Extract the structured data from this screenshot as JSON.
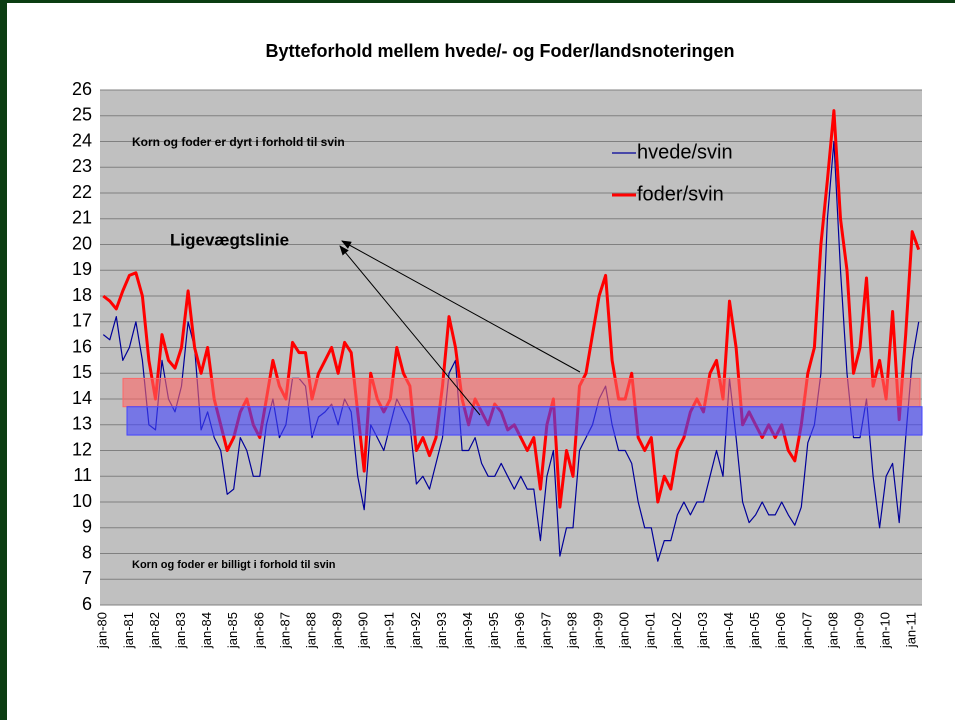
{
  "chart_data": {
    "type": "line",
    "title": "Bytteforhold mellem hvede/- og Foder/landsnoteringen",
    "categories": [
      "jan-80",
      null,
      null,
      null,
      "jan-81",
      null,
      null,
      null,
      "jan-82",
      null,
      null,
      null,
      "jan-83",
      null,
      null,
      null,
      "jan-84",
      null,
      null,
      null,
      "jan-85",
      null,
      null,
      null,
      "jan-86",
      null,
      null,
      null,
      "jan-87",
      null,
      null,
      null,
      "jan-88",
      null,
      null,
      null,
      "jan-89",
      null,
      null,
      null,
      "jan-90",
      null,
      null,
      null,
      "jan-91",
      null,
      null,
      null,
      "jan-92",
      null,
      null,
      null,
      "jan-93",
      null,
      null,
      null,
      "jan-94",
      null,
      null,
      null,
      "jan-95",
      null,
      null,
      null,
      "jan-96",
      null,
      null,
      null,
      "jan-97",
      null,
      null,
      null,
      "jan-98",
      null,
      null,
      null,
      "jan-99",
      null,
      null,
      null,
      "jan-00",
      null,
      null,
      null,
      "jan-01",
      null,
      null,
      null,
      "jan-02",
      null,
      null,
      null,
      "jan-03",
      null,
      null,
      null,
      "jan-04",
      null,
      null,
      null,
      "jan-05",
      null,
      null,
      null,
      "jan-06",
      null,
      null,
      null,
      "jan-07",
      null,
      null,
      null,
      "jan-08",
      null,
      null,
      null,
      "jan-09",
      null,
      null,
      null,
      "jan-10",
      null,
      null,
      null,
      "jan-11",
      null
    ],
    "series": [
      {
        "name": "hvede/svin",
        "color": "#000099",
        "values": [
          16.5,
          16.3,
          17.2,
          15.5,
          16,
          17,
          15.5,
          13,
          12.8,
          15.5,
          14,
          13.5,
          14.5,
          17,
          16,
          12.8,
          13.5,
          12.5,
          12,
          10.3,
          10.5,
          12.5,
          12,
          11,
          11,
          13,
          14,
          12.5,
          13,
          14.8,
          14.8,
          14.5,
          12.5,
          13.3,
          13.5,
          13.8,
          13,
          14,
          13.5,
          11,
          9.7,
          13,
          12.5,
          12,
          13,
          14,
          13.5,
          13,
          10.7,
          11,
          10.5,
          11.5,
          12.5,
          15,
          15.5,
          12,
          12,
          12.5,
          11.5,
          11,
          11,
          11.5,
          11,
          10.5,
          11,
          10.5,
          10.5,
          8.5,
          11,
          12,
          7.9,
          9,
          9,
          12,
          12.5,
          13,
          14,
          14.5,
          13,
          12,
          12,
          11.5,
          10,
          9,
          9,
          7.7,
          8.5,
          8.5,
          9.5,
          10,
          9.5,
          10,
          10,
          11,
          12,
          11,
          14.8,
          12.5,
          10,
          9.2,
          9.5,
          10,
          9.5,
          9.5,
          10,
          9.5,
          9.1,
          9.8,
          12.3,
          13,
          15,
          21,
          24,
          19,
          15,
          12.5,
          12.5,
          14,
          11,
          9,
          11,
          11.5,
          9.2,
          12.5,
          15.5,
          17
        ]
      },
      {
        "name": "foder/svin",
        "color": "#ff0000",
        "values": [
          18,
          17.8,
          17.5,
          18.2,
          18.8,
          18.9,
          18,
          15.5,
          14,
          16.5,
          15.5,
          15.2,
          16,
          18.2,
          16,
          15,
          16,
          14,
          13,
          12,
          12.5,
          13.5,
          14,
          13,
          12.5,
          14,
          15.5,
          14.5,
          14,
          16.2,
          15.8,
          15.8,
          14,
          15,
          15.5,
          16,
          15,
          16.2,
          15.8,
          13.5,
          11.2,
          15,
          14,
          13.5,
          14,
          16,
          15,
          14.5,
          12,
          12.5,
          11.8,
          12.5,
          14.5,
          17.2,
          16,
          14,
          13,
          14,
          13.5,
          13,
          13.8,
          13.5,
          12.8,
          13,
          12.5,
          12,
          12.5,
          10.5,
          13,
          14,
          9.8,
          12,
          11,
          14.5,
          15,
          16.5,
          18,
          18.8,
          15.5,
          14,
          14,
          15,
          12.5,
          12,
          12.5,
          10,
          11,
          10.5,
          12,
          12.5,
          13.5,
          14,
          13.5,
          15,
          15.5,
          14,
          17.8,
          16,
          13,
          13.5,
          13,
          12.5,
          13,
          12.5,
          13,
          12,
          11.6,
          13,
          15,
          16,
          20,
          22.5,
          25.2,
          21,
          19,
          15,
          16,
          18.7,
          14.5,
          15.5,
          14,
          17.4,
          13.2,
          16.5,
          20.5,
          19.8
        ]
      }
    ],
    "ylim": [
      6,
      26
    ],
    "yticks": [
      6,
      7,
      8,
      9,
      10,
      11,
      12,
      13,
      14,
      15,
      16,
      17,
      18,
      19,
      20,
      21,
      22,
      23,
      24,
      25,
      26
    ],
    "grid": true,
    "bands": [
      {
        "from": 13.7,
        "to": 14.8,
        "color": "#ff6666"
      },
      {
        "from": 12.6,
        "to": 13.7,
        "color": "#4444ff"
      }
    ],
    "annotations": [
      "Korn og foder er dyrt i forhold til svin",
      "Korn og foder er billigt i forhold til svin",
      "Ligevægtslinie"
    ]
  }
}
